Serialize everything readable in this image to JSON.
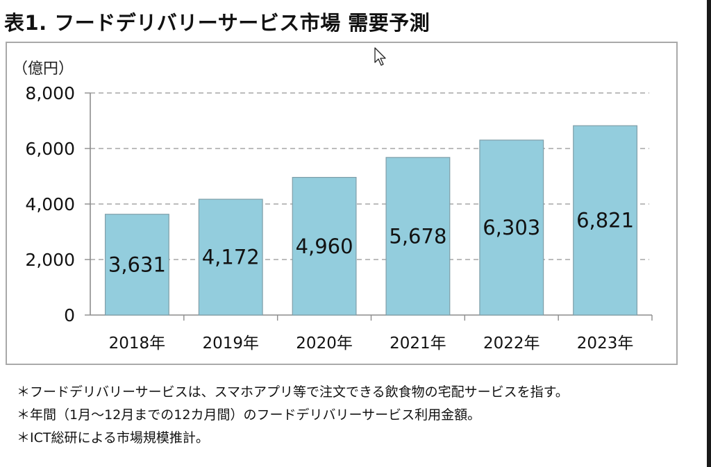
{
  "page": {
    "title": "表1. フードデリバリーサービス市場 需要予測"
  },
  "chart_data": {
    "type": "bar",
    "title": "",
    "xlabel": "",
    "ylabel": "",
    "unit_label": "（億円）",
    "categories": [
      "2018年",
      "2019年",
      "2020年",
      "2021年",
      "2022年",
      "2023年"
    ],
    "values": [
      3631,
      4172,
      4960,
      5678,
      6303,
      6821
    ],
    "value_labels": [
      "3,631",
      "4,172",
      "4,960",
      "5,678",
      "6,303",
      "6,821"
    ],
    "ylim": [
      0,
      8000
    ],
    "yticks": [
      0,
      2000,
      4000,
      6000,
      8000
    ],
    "ytick_labels": [
      "0",
      "2,000",
      "4,000",
      "6,000",
      "8,000"
    ],
    "grid": true,
    "grid_style": "dashed",
    "legend": "none",
    "bar_color": "#93cddd",
    "bar_edge_color": "#7f9ea8"
  },
  "notes": [
    "＊フードデリバリーサービスは、スマホアプリ等で注文できる飲食物の宅配サービスを指す。",
    "＊年間（1月～12月までの12カ月間）のフードデリバリーサービス利用金額。",
    "＊ICT総研による市場規模推計。"
  ],
  "icons": {
    "cursor": "mouse-pointer-icon"
  }
}
